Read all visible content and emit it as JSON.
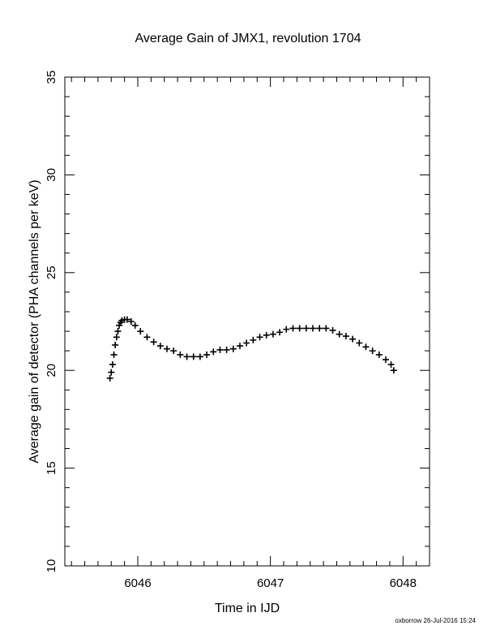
{
  "chart_data": {
    "type": "scatter",
    "title": "Average Gain of JMX1, revolution 1704",
    "xlabel": "Time in IJD",
    "ylabel": "Average gain of detector (PHA channels per keV)",
    "xlim": [
      6045.45,
      6048.2
    ],
    "ylim": [
      10,
      35
    ],
    "x_ticks": [
      6046,
      6047,
      6048
    ],
    "y_ticks": [
      10,
      15,
      20,
      25,
      30,
      35
    ],
    "x_minor_step": 0.1,
    "y_minor_step": 1,
    "grid": false,
    "marker": "plus",
    "marker_color": "#000000",
    "series": [
      {
        "x": [
          6045.79,
          6045.8,
          6045.81,
          6045.82,
          6045.83,
          6045.84,
          6045.85,
          6045.86,
          6045.87,
          6045.88,
          6045.9,
          6045.92,
          6045.95,
          6045.98,
          6046.02,
          6046.07,
          6046.12,
          6046.17,
          6046.22,
          6046.27,
          6046.32,
          6046.37,
          6046.42,
          6046.47,
          6046.52,
          6046.57,
          6046.62,
          6046.67,
          6046.72,
          6046.77,
          6046.82,
          6046.87,
          6046.92,
          6046.97,
          6047.02,
          6047.07,
          6047.12,
          6047.17,
          6047.22,
          6047.27,
          6047.32,
          6047.37,
          6047.42,
          6047.47,
          6047.52,
          6047.57,
          6047.62,
          6047.67,
          6047.72,
          6047.77,
          6047.82,
          6047.87,
          6047.91,
          6047.93
        ],
        "y": [
          19.6,
          19.9,
          20.3,
          20.8,
          21.3,
          21.7,
          22.0,
          22.3,
          22.45,
          22.55,
          22.6,
          22.6,
          22.5,
          22.3,
          22.0,
          21.7,
          21.45,
          21.25,
          21.1,
          21.0,
          20.8,
          20.7,
          20.7,
          20.7,
          20.8,
          20.95,
          21.05,
          21.05,
          21.1,
          21.25,
          21.4,
          21.55,
          21.7,
          21.8,
          21.85,
          21.95,
          22.1,
          22.15,
          22.15,
          22.15,
          22.15,
          22.15,
          22.15,
          22.05,
          21.85,
          21.75,
          21.6,
          21.4,
          21.2,
          21.0,
          20.8,
          20.55,
          20.3,
          20.0
        ]
      }
    ]
  },
  "footer": {
    "text": "oxborrow 26-Jul-2016 15:24"
  }
}
